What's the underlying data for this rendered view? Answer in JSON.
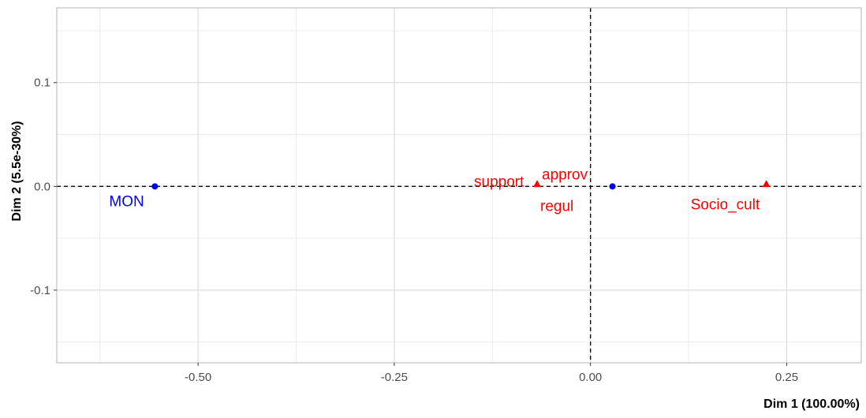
{
  "chart_data": {
    "type": "scatter",
    "title": "",
    "xlabel": "Dim 1 (100.00%)",
    "ylabel": "Dim 2 (5.5e-30%)",
    "xlim": [
      -0.68,
      0.345
    ],
    "ylim": [
      -0.17,
      0.172
    ],
    "x_ticks": [
      -0.5,
      -0.25,
      0.0,
      0.25
    ],
    "x_tick_labels": [
      "-0.50",
      "-0.25",
      "0.00",
      "0.25"
    ],
    "y_ticks": [
      -0.1,
      0.0,
      0.1
    ],
    "y_tick_labels": [
      "-0.1",
      "0.0",
      "0.1"
    ],
    "grid": true,
    "reference_lines": {
      "x": 0,
      "y": 0,
      "style": "dashed"
    },
    "series": [
      {
        "marker": "circle",
        "color": "#0000FF",
        "points": [
          {
            "x": -0.555,
            "y": 0.0,
            "label": "MON"
          },
          {
            "x": 0.028,
            "y": 0.0,
            "label": ""
          }
        ]
      },
      {
        "marker": "triangle",
        "color": "#FF0000",
        "points": [
          {
            "x": -0.068,
            "y": 0.002,
            "label": "support"
          },
          {
            "x": -0.068,
            "y": 0.002,
            "label": "approv"
          },
          {
            "x": -0.068,
            "y": 0.002,
            "label": "regul"
          },
          {
            "x": 0.224,
            "y": 0.002,
            "label": "Socio_cult"
          }
        ]
      }
    ]
  }
}
